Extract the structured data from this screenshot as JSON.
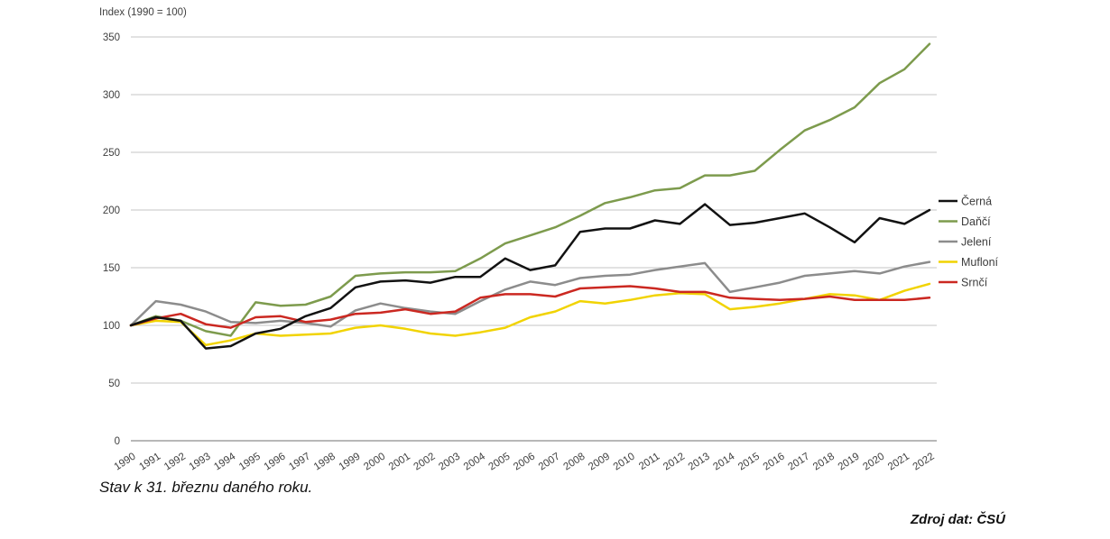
{
  "chart": {
    "title": "Index (1990 = 100)",
    "footnote": "Stav k 31. březnu daného roku.",
    "source": "Zdroj dat: ČSÚ"
  },
  "chart_data": {
    "type": "line",
    "title": "Index (1990 = 100)",
    "xlabel": "",
    "ylabel": "Index (1990 = 100)",
    "ylim": [
      0,
      350
    ],
    "ytick_step": 50,
    "grid": "horizontal",
    "gridline_color": "#c6c6c6",
    "baseline_color": "#a0a0a0",
    "legend_position": "right",
    "x": [
      "1990",
      "1991",
      "1992",
      "1993",
      "1994",
      "1995",
      "1996",
      "1997",
      "1998",
      "1999",
      "2000",
      "2001",
      "2002",
      "2003",
      "2004",
      "2005",
      "2006",
      "2007",
      "2008",
      "2009",
      "2010",
      "2011",
      "2012",
      "2013",
      "2014",
      "2015",
      "2016",
      "2017",
      "2018",
      "2019",
      "2020",
      "2021",
      "2022"
    ],
    "series": [
      {
        "name": "Černá",
        "color": "#121212",
        "values": [
          100,
          107,
          104,
          80,
          82,
          93,
          97,
          108,
          115,
          133,
          138,
          139,
          137,
          142,
          142,
          158,
          148,
          152,
          181,
          184,
          184,
          191,
          188,
          205,
          187,
          189,
          193,
          197,
          185,
          172,
          193,
          188,
          200
        ]
      },
      {
        "name": "Daňčí",
        "color": "#7d9b4d",
        "values": [
          100,
          108,
          104,
          95,
          91,
          120,
          117,
          118,
          125,
          143,
          145,
          146,
          146,
          147,
          158,
          171,
          178,
          185,
          195,
          206,
          211,
          217,
          219,
          230,
          230,
          234,
          252,
          269,
          278,
          289,
          310,
          322,
          344
        ]
      },
      {
        "name": "Jelení",
        "color": "#8c8c8c",
        "values": [
          100,
          121,
          118,
          112,
          103,
          102,
          104,
          102,
          99,
          113,
          119,
          115,
          112,
          110,
          121,
          131,
          138,
          135,
          141,
          143,
          144,
          148,
          151,
          154,
          129,
          133,
          137,
          143,
          145,
          147,
          145,
          151,
          155
        ]
      },
      {
        "name": "Mufloní",
        "color": "#f1d302",
        "values": [
          100,
          104,
          103,
          83,
          87,
          93,
          91,
          92,
          93,
          98,
          100,
          97,
          93,
          91,
          94,
          98,
          107,
          112,
          121,
          119,
          122,
          126,
          128,
          127,
          114,
          116,
          119,
          123,
          127,
          126,
          122,
          130,
          136
        ]
      },
      {
        "name": "Srnčí",
        "color": "#cb2821",
        "values": [
          100,
          106,
          110,
          101,
          98,
          107,
          108,
          103,
          105,
          110,
          111,
          114,
          110,
          112,
          124,
          127,
          127,
          125,
          132,
          133,
          134,
          132,
          129,
          129,
          124,
          123,
          122,
          123,
          125,
          122,
          122,
          122,
          124
        ]
      }
    ],
    "draw_order": [
      2,
      1,
      3,
      4,
      0
    ]
  }
}
